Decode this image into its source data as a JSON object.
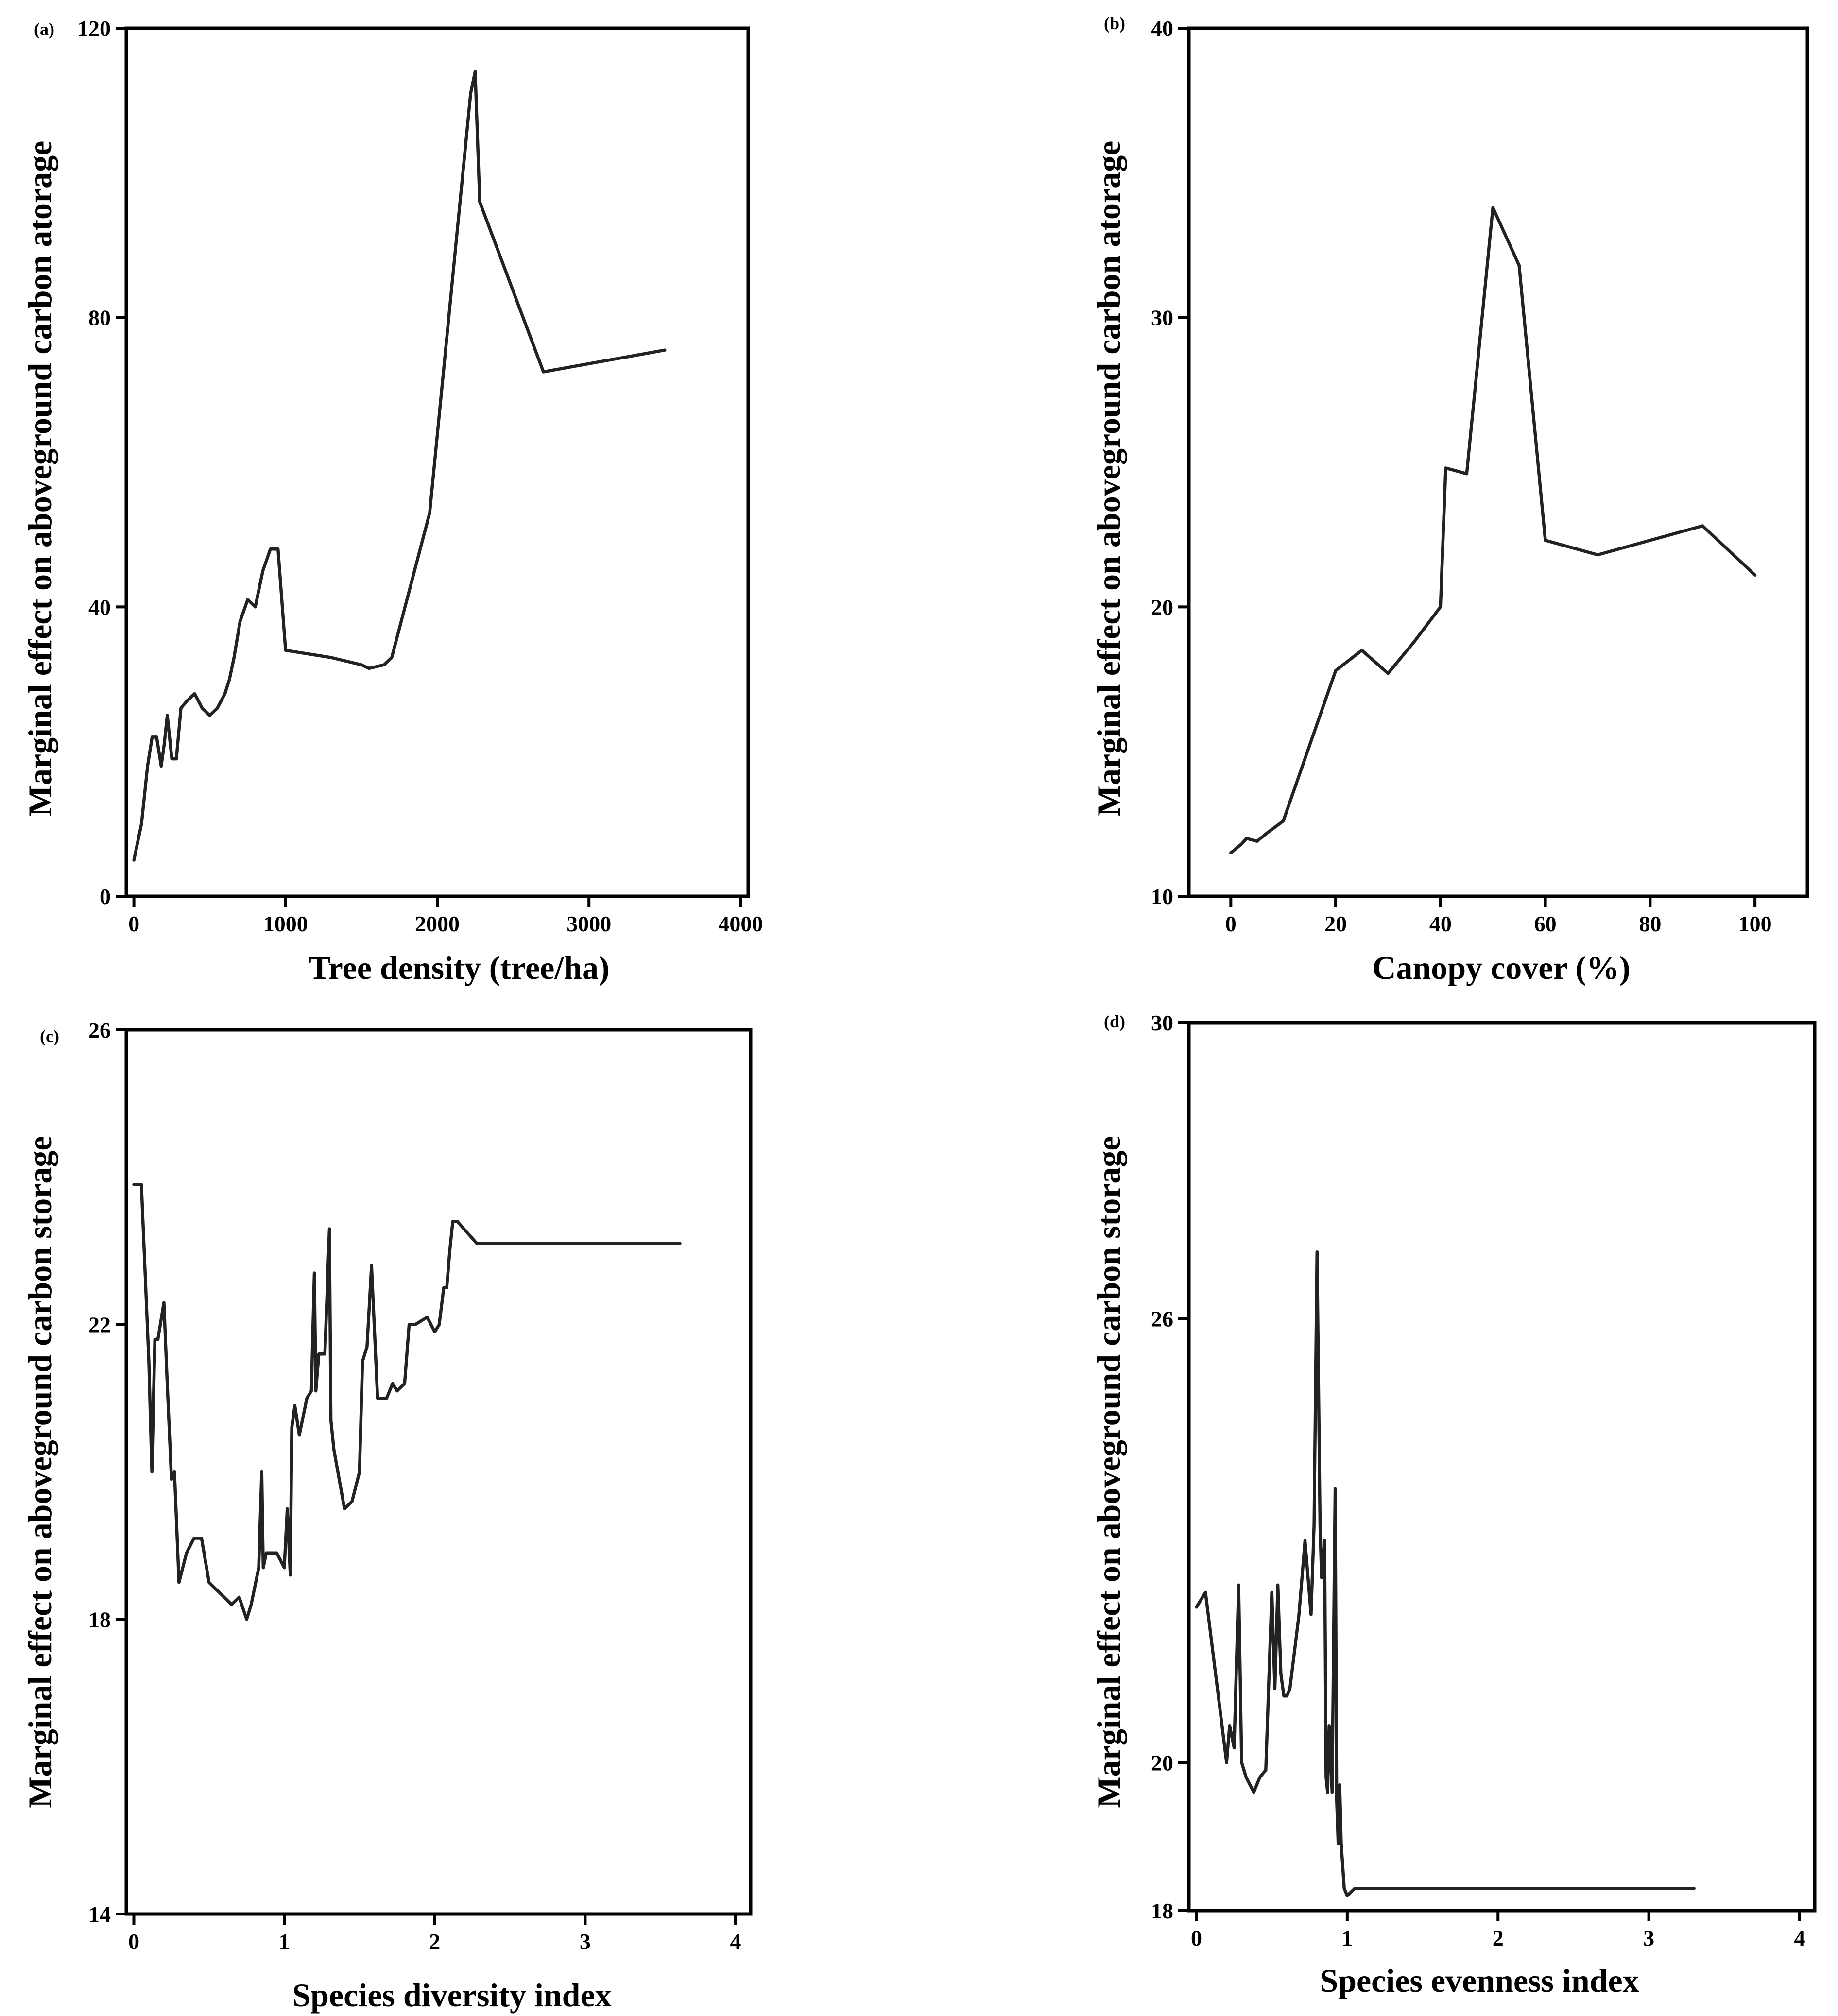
{
  "figure": {
    "colors": {
      "line": "#222222",
      "axis": "#000000",
      "background": "#ffffff"
    }
  },
  "chart_data": [
    {
      "panel_label": "(a)",
      "type": "line",
      "xlabel": "Tree density (tree/ha)",
      "ylabel": "Marginal effect on aboveground carbon atorage",
      "xlim": [
        -50,
        4050
      ],
      "ylim": [
        0,
        120
      ],
      "xticks": [
        0,
        1000,
        2000,
        3000,
        4000
      ],
      "xtick_labels": [
        "0",
        "1000",
        "2000",
        "3000",
        "4000"
      ],
      "yticks": [
        0,
        40,
        80,
        120
      ],
      "ytick_labels": [
        "0",
        "40",
        "80",
        "120"
      ],
      "x": [
        0,
        50,
        90,
        120,
        150,
        180,
        200,
        220,
        250,
        280,
        310,
        350,
        400,
        450,
        500,
        550,
        600,
        630,
        660,
        700,
        750,
        800,
        850,
        900,
        950,
        1000,
        1300,
        1500,
        1550,
        1650,
        1700,
        1950,
        2220,
        2250,
        2280,
        2700,
        3500
      ],
      "y": [
        5,
        10,
        18,
        22,
        22,
        18,
        21,
        25,
        19,
        19,
        26,
        27,
        28,
        26,
        25,
        26,
        28,
        30,
        33,
        38,
        41,
        40,
        45,
        48,
        48,
        34,
        33,
        32,
        31.5,
        32,
        33,
        53,
        111,
        114,
        96,
        72.5,
        75.5
      ]
    },
    {
      "panel_label": "(b)",
      "type": "line",
      "xlabel": "Canopy cover (%)",
      "ylabel": "Marginal effect on aboveground carbon atorage",
      "xlim": [
        -8,
        110
      ],
      "ylim": [
        10,
        40
      ],
      "xticks": [
        0,
        20,
        40,
        60,
        80,
        100
      ],
      "xtick_labels": [
        "0",
        "20",
        "40",
        "60",
        "80",
        "100"
      ],
      "yticks": [
        10,
        20,
        30,
        40
      ],
      "ytick_labels": [
        "10",
        "20",
        "30",
        "40"
      ],
      "x": [
        0,
        2,
        3,
        5,
        7,
        10,
        15,
        20,
        25,
        30,
        35,
        40,
        41,
        45,
        50,
        55,
        60,
        70,
        80,
        90,
        100
      ],
      "y": [
        11.5,
        11.8,
        12.0,
        11.9,
        12.2,
        12.6,
        15.2,
        17.8,
        18.5,
        17.7,
        18.8,
        20.0,
        24.8,
        24.6,
        33.8,
        31.8,
        22.3,
        21.8,
        22.3,
        22.8,
        21.1
      ]
    },
    {
      "panel_label": "(c)",
      "type": "line",
      "xlabel": "Species diversity index",
      "ylabel": "Marginal effect on aboveground carbon storage",
      "xlim": [
        -0.05,
        4.1
      ],
      "ylim": [
        14,
        26
      ],
      "xticks": [
        0,
        1,
        2,
        3,
        4
      ],
      "xtick_labels": [
        "0",
        "1",
        "2",
        "3",
        "4"
      ],
      "yticks": [
        14,
        18,
        22,
        26
      ],
      "ytick_labels": [
        "14",
        "18",
        "22",
        "26"
      ],
      "x": [
        0,
        0.05,
        0.1,
        0.12,
        0.14,
        0.16,
        0.2,
        0.22,
        0.25,
        0.27,
        0.3,
        0.35,
        0.4,
        0.45,
        0.5,
        0.55,
        0.6,
        0.65,
        0.7,
        0.75,
        0.78,
        0.8,
        0.83,
        0.85,
        0.86,
        0.88,
        0.9,
        0.95,
        1.0,
        1.02,
        1.04,
        1.05,
        1.07,
        1.1,
        1.12,
        1.15,
        1.18,
        1.2,
        1.21,
        1.23,
        1.25,
        1.27,
        1.3,
        1.31,
        1.33,
        1.4,
        1.45,
        1.5,
        1.52,
        1.55,
        1.58,
        1.62,
        1.68,
        1.72,
        1.75,
        1.8,
        1.83,
        1.87,
        1.95,
        2.0,
        2.03,
        2.06,
        2.08,
        2.1,
        2.12,
        2.15,
        2.28,
        3.63
      ],
      "y": [
        23.9,
        23.9,
        21.5,
        20.0,
        21.8,
        21.8,
        22.3,
        21.3,
        19.9,
        20.0,
        18.5,
        18.9,
        19.1,
        19.1,
        18.5,
        18.4,
        18.3,
        18.2,
        18.3,
        18.0,
        18.2,
        18.4,
        18.7,
        20.0,
        18.7,
        18.9,
        18.9,
        18.9,
        18.7,
        19.5,
        18.6,
        20.6,
        20.9,
        20.5,
        20.7,
        21.0,
        21.1,
        22.7,
        21.1,
        21.6,
        21.6,
        21.6,
        23.3,
        20.7,
        20.3,
        19.5,
        19.6,
        20.0,
        21.5,
        21.7,
        22.8,
        21.0,
        21.0,
        21.2,
        21.1,
        21.2,
        22.0,
        22.0,
        22.1,
        21.9,
        22.0,
        22.5,
        22.5,
        23.0,
        23.4,
        23.4,
        23.1,
        23.1
      ]
    },
    {
      "panel_label": "(d)",
      "type": "line",
      "xlabel": "Species evenness index",
      "ylabel": "Marginal effect on aboveground carbon storage",
      "xlim": [
        -0.05,
        4.1
      ],
      "ylim": [
        18,
        30
      ],
      "xticks": [
        0,
        1,
        2,
        3,
        4
      ],
      "xtick_labels": [
        "0",
        "1",
        "2",
        "3",
        "4"
      ],
      "yticks": [
        18,
        20,
        26,
        30
      ],
      "ytick_labels": [
        "18",
        "20",
        "26",
        "30"
      ],
      "x": [
        0,
        0.06,
        0.2,
        0.22,
        0.25,
        0.28,
        0.3,
        0.33,
        0.38,
        0.42,
        0.46,
        0.5,
        0.52,
        0.54,
        0.56,
        0.58,
        0.6,
        0.62,
        0.65,
        0.68,
        0.72,
        0.74,
        0.76,
        0.78,
        0.8,
        0.82,
        0.83,
        0.85,
        0.86,
        0.87,
        0.88,
        0.9,
        0.92,
        0.93,
        0.94,
        0.95,
        0.96,
        0.97,
        0.98,
        1.0,
        1.05,
        3.3
      ],
      "y": [
        22.1,
        22.3,
        20.0,
        20.5,
        20.2,
        22.4,
        20.0,
        19.8,
        19.6,
        19.8,
        19.9,
        22.3,
        21.0,
        22.4,
        21.2,
        20.9,
        20.9,
        21.0,
        21.5,
        22.0,
        23.0,
        22.5,
        22.0,
        23.2,
        26.9,
        23.2,
        22.5,
        23.0,
        19.8,
        19.6,
        20.5,
        19.6,
        23.7,
        19.5,
        18.9,
        19.7,
        18.9,
        18.6,
        18.3,
        18.2,
        18.3,
        18.3
      ]
    }
  ]
}
